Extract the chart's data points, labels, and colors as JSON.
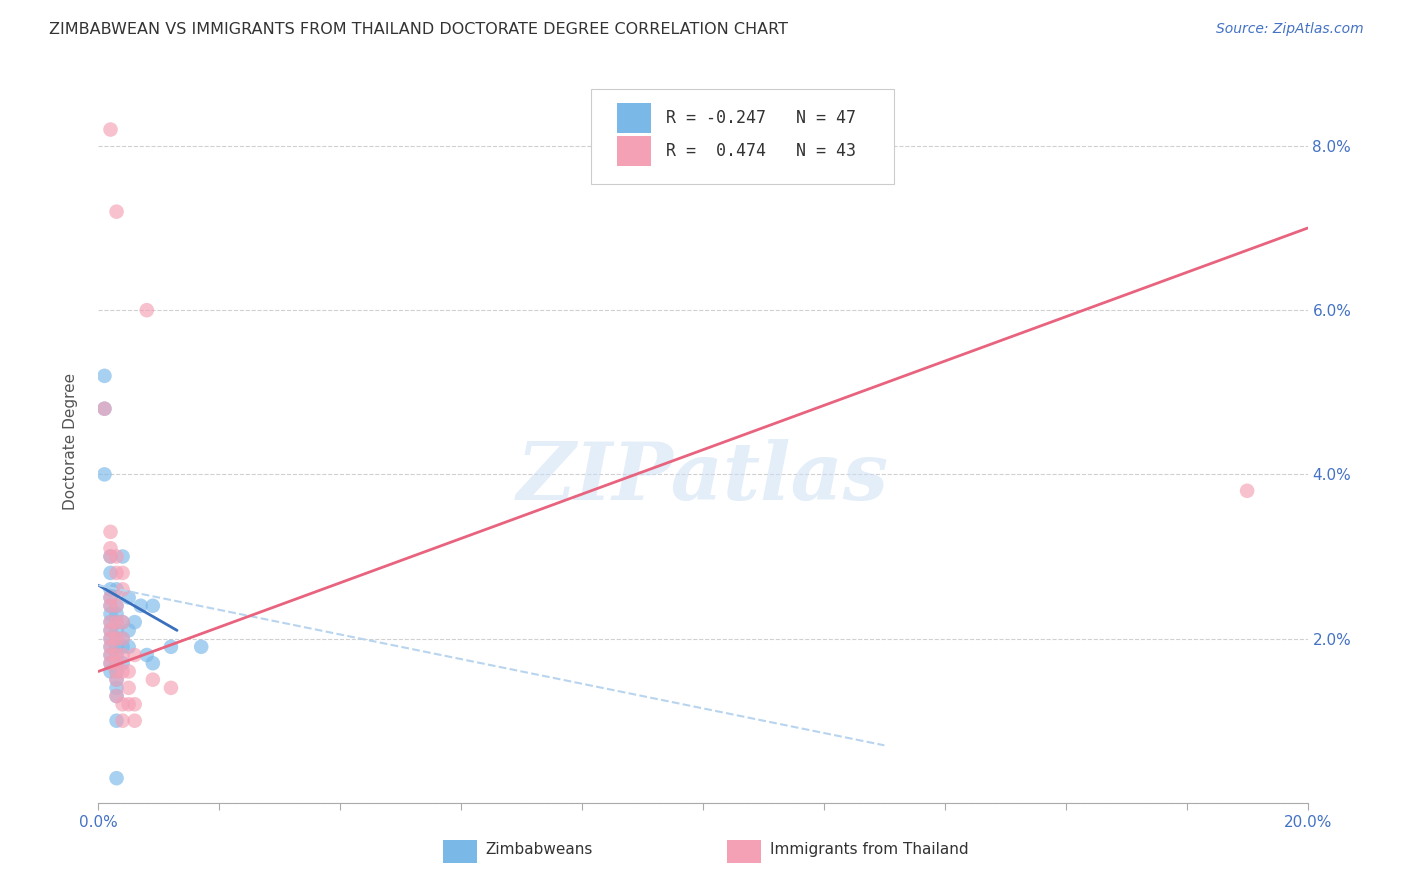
{
  "title": "ZIMBABWEAN VS IMMIGRANTS FROM THAILAND DOCTORATE DEGREE CORRELATION CHART",
  "source": "Source: ZipAtlas.com",
  "xlabel_zimbabweans": "Zimbabweans",
  "xlabel_thailand": "Immigrants from Thailand",
  "ylabel": "Doctorate Degree",
  "xlim": [
    0.0,
    0.2
  ],
  "ylim": [
    0.0,
    0.088
  ],
  "xticks": [
    0.0,
    0.02,
    0.04,
    0.06,
    0.08,
    0.1,
    0.12,
    0.14,
    0.16,
    0.18,
    0.2
  ],
  "xtick_labels": [
    "0.0%",
    "",
    "",
    "",
    "",
    "",
    "",
    "",
    "",
    "",
    "20.0%"
  ],
  "yticks": [
    0.0,
    0.02,
    0.04,
    0.06,
    0.08
  ],
  "ytick_labels_right": [
    "",
    "2.0%",
    "4.0%",
    "6.0%",
    "8.0%"
  ],
  "legend_r_blue": "-0.247",
  "legend_n_blue": "47",
  "legend_r_pink": "0.474",
  "legend_n_pink": "43",
  "color_blue": "#7ab8e8",
  "color_pink": "#f4a0b5",
  "color_blue_line": "#3a6fbd",
  "color_pink_line": "#e8637e",
  "color_dashed_line": "#b8d4ef",
  "watermark": "ZIPatlas",
  "blue_points": [
    [
      0.001,
      0.052
    ],
    [
      0.001,
      0.048
    ],
    [
      0.001,
      0.04
    ],
    [
      0.002,
      0.03
    ],
    [
      0.002,
      0.028
    ],
    [
      0.002,
      0.026
    ],
    [
      0.002,
      0.025
    ],
    [
      0.002,
      0.024
    ],
    [
      0.002,
      0.023
    ],
    [
      0.002,
      0.022
    ],
    [
      0.002,
      0.021
    ],
    [
      0.002,
      0.02
    ],
    [
      0.002,
      0.019
    ],
    [
      0.002,
      0.018
    ],
    [
      0.002,
      0.017
    ],
    [
      0.002,
      0.016
    ],
    [
      0.003,
      0.026
    ],
    [
      0.003,
      0.024
    ],
    [
      0.003,
      0.023
    ],
    [
      0.003,
      0.022
    ],
    [
      0.003,
      0.021
    ],
    [
      0.003,
      0.02
    ],
    [
      0.003,
      0.019
    ],
    [
      0.003,
      0.018
    ],
    [
      0.003,
      0.017
    ],
    [
      0.003,
      0.016
    ],
    [
      0.003,
      0.015
    ],
    [
      0.003,
      0.014
    ],
    [
      0.003,
      0.013
    ],
    [
      0.003,
      0.01
    ],
    [
      0.003,
      0.003
    ],
    [
      0.004,
      0.03
    ],
    [
      0.004,
      0.022
    ],
    [
      0.004,
      0.02
    ],
    [
      0.004,
      0.019
    ],
    [
      0.004,
      0.017
    ],
    [
      0.005,
      0.025
    ],
    [
      0.005,
      0.021
    ],
    [
      0.005,
      0.019
    ],
    [
      0.006,
      0.022
    ],
    [
      0.007,
      0.024
    ],
    [
      0.008,
      0.018
    ],
    [
      0.009,
      0.024
    ],
    [
      0.009,
      0.017
    ],
    [
      0.012,
      0.019
    ],
    [
      0.017,
      0.019
    ]
  ],
  "pink_points": [
    [
      0.002,
      0.082
    ],
    [
      0.003,
      0.072
    ],
    [
      0.001,
      0.048
    ],
    [
      0.002,
      0.033
    ],
    [
      0.002,
      0.031
    ],
    [
      0.002,
      0.03
    ],
    [
      0.002,
      0.025
    ],
    [
      0.002,
      0.024
    ],
    [
      0.002,
      0.022
    ],
    [
      0.002,
      0.021
    ],
    [
      0.002,
      0.02
    ],
    [
      0.002,
      0.019
    ],
    [
      0.002,
      0.018
    ],
    [
      0.002,
      0.017
    ],
    [
      0.003,
      0.03
    ],
    [
      0.003,
      0.028
    ],
    [
      0.003,
      0.024
    ],
    [
      0.003,
      0.022
    ],
    [
      0.003,
      0.02
    ],
    [
      0.003,
      0.018
    ],
    [
      0.003,
      0.017
    ],
    [
      0.003,
      0.016
    ],
    [
      0.003,
      0.015
    ],
    [
      0.003,
      0.013
    ],
    [
      0.004,
      0.028
    ],
    [
      0.004,
      0.026
    ],
    [
      0.004,
      0.022
    ],
    [
      0.004,
      0.02
    ],
    [
      0.004,
      0.018
    ],
    [
      0.004,
      0.016
    ],
    [
      0.004,
      0.012
    ],
    [
      0.004,
      0.01
    ],
    [
      0.005,
      0.016
    ],
    [
      0.005,
      0.014
    ],
    [
      0.005,
      0.012
    ],
    [
      0.006,
      0.018
    ],
    [
      0.006,
      0.012
    ],
    [
      0.006,
      0.01
    ],
    [
      0.008,
      0.06
    ],
    [
      0.009,
      0.015
    ],
    [
      0.012,
      0.014
    ],
    [
      0.19,
      0.038
    ]
  ],
  "blue_line_x": [
    0.0,
    0.013
  ],
  "blue_line_y": [
    0.0265,
    0.021
  ],
  "pink_line_x": [
    0.0,
    0.2
  ],
  "pink_line_y": [
    0.016,
    0.07
  ],
  "dashed_line_x": [
    0.0,
    0.13
  ],
  "dashed_line_y": [
    0.0265,
    0.007
  ]
}
